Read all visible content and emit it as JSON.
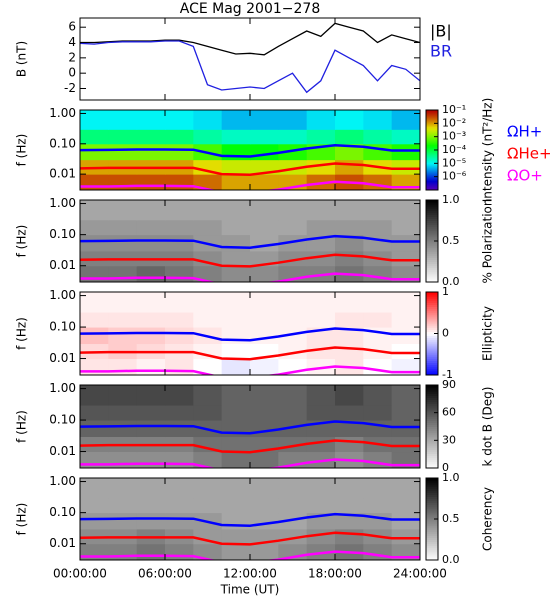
{
  "chart_data": [
    {
      "type": "line",
      "title": "ACE Mag 2001−278",
      "ylabel": "B (nT)",
      "x": [
        0,
        1,
        2,
        3,
        4,
        5,
        6,
        7,
        8,
        9,
        10,
        11,
        12,
        13,
        14,
        15,
        16,
        17,
        18,
        19,
        20,
        21,
        22,
        23,
        24
      ],
      "xlim": [
        0,
        24
      ],
      "xticks": [
        0,
        6,
        12,
        18,
        24
      ],
      "ylim": [
        -3.5,
        7.2
      ],
      "yticks": [
        -2,
        0,
        2,
        4,
        6
      ],
      "legend": "right",
      "series": [
        {
          "name": "|B|",
          "color": "#000000",
          "values": [
            4.0,
            4.0,
            4.1,
            4.2,
            4.2,
            4.2,
            4.3,
            4.3,
            4.0,
            3.5,
            3.0,
            2.5,
            2.6,
            2.4,
            3.5,
            4.5,
            5.5,
            4.8,
            6.5,
            6.0,
            5.5,
            4.0,
            5.0,
            4.5,
            4.0
          ]
        },
        {
          "name": "BR",
          "color": "#2020e0",
          "values": [
            3.9,
            3.8,
            4.0,
            4.1,
            4.1,
            4.1,
            4.2,
            4.2,
            3.5,
            -1.5,
            -2.2,
            -2.0,
            -1.8,
            -2.0,
            -1.0,
            0,
            -2.5,
            -1.0,
            3.0,
            2.0,
            1.0,
            -1.0,
            1.0,
            0.5,
            -1.0
          ]
        }
      ]
    },
    {
      "type": "heatmap",
      "ylabel": "f (Hz)",
      "log_y": true,
      "xlim": [
        0,
        24
      ],
      "xticks": [
        0,
        6,
        12,
        18,
        24
      ],
      "ylim": [
        0.003,
        1.3
      ],
      "yticks": [
        0.01,
        {
          "value": 0.1,
          "label": "0.10"
        },
        {
          "value": 1,
          "label": "1.00"
        }
      ],
      "xbins": [
        0,
        2,
        4,
        6,
        8,
        10,
        12,
        14,
        16,
        18,
        20,
        22,
        24
      ],
      "ybins": [
        0.003,
        0.01,
        0.03,
        0.1,
        0.3,
        1.3
      ],
      "colormap": "rainbow",
      "zlog": true,
      "zlim": [
        1e-07,
        0.1
      ],
      "zticks": [
        {
          "value": 0.1,
          "label": "10⁻¹"
        },
        {
          "value": 0.01,
          "label": "10⁻²"
        },
        {
          "value": 0.001,
          "label": "10⁻³"
        },
        {
          "value": 0.0001,
          "label": "10⁻⁴"
        },
        {
          "value": 1e-05,
          "label": "10⁻⁵"
        },
        {
          "value": 1e-06,
          "label": "10⁻⁶"
        }
      ],
      "zlabel": "Intensity (nT²/Hz)",
      "z": [
        [
          0.03,
          0.03,
          0.03,
          0.03,
          0.02,
          0.01,
          0.01,
          0.01,
          0.02,
          0.03,
          0.02,
          0.01
        ],
        [
          0.01,
          0.01,
          0.01,
          0.01,
          0.005,
          0.003,
          0.003,
          0.003,
          0.005,
          0.01,
          0.005,
          0.003
        ],
        [
          0.001,
          0.001,
          0.001,
          0.001,
          0.0005,
          0.0002,
          0.0002,
          0.0003,
          0.0005,
          0.001,
          0.0005,
          0.0003
        ],
        [
          5e-05,
          5e-05,
          5e-05,
          5e-05,
          3e-05,
          2e-05,
          2e-05,
          2e-05,
          3e-05,
          5e-05,
          3e-05,
          2e-05
        ],
        [
          1e-05,
          1e-05,
          1e-05,
          1e-05,
          8e-06,
          5e-06,
          5e-06,
          5e-06,
          8e-06,
          1e-05,
          8e-06,
          5e-06
        ]
      ],
      "overlay_x": [
        0,
        2,
        4,
        6,
        8,
        10,
        12,
        14,
        16,
        18,
        20,
        22,
        24
      ],
      "legend": "right",
      "series": [
        {
          "name": "ΩH+",
          "color": "#0000ff",
          "values": [
            0.062,
            0.063,
            0.065,
            0.065,
            0.064,
            0.04,
            0.038,
            0.05,
            0.07,
            0.09,
            0.08,
            0.06,
            0.06
          ]
        },
        {
          "name": "ΩHe+",
          "color": "#ff0000",
          "values": [
            0.0155,
            0.016,
            0.016,
            0.016,
            0.016,
            0.01,
            0.0095,
            0.0125,
            0.0175,
            0.0225,
            0.02,
            0.015,
            0.015
          ]
        },
        {
          "name": "ΩO+",
          "color": "#ff00ff",
          "values": [
            0.0039,
            0.0039,
            0.0041,
            0.0041,
            0.004,
            0.0025,
            0.0024,
            0.0031,
            0.0044,
            0.0056,
            0.005,
            0.0037,
            0.0037
          ]
        }
      ]
    },
    {
      "type": "heatmap",
      "ylabel": "f (Hz)",
      "log_y": true,
      "xlim": [
        0,
        24
      ],
      "xticks": [
        0,
        6,
        12,
        18,
        24
      ],
      "ylim": [
        0.003,
        1.3
      ],
      "yticks": [
        0.01,
        {
          "value": 0.1,
          "label": "0.10"
        },
        {
          "value": 1,
          "label": "1.00"
        }
      ],
      "xbins": [
        0,
        2,
        4,
        6,
        8,
        10,
        12,
        14,
        16,
        18,
        20,
        22,
        24
      ],
      "ybins": [
        0.003,
        0.01,
        0.03,
        0.1,
        0.3,
        1.3
      ],
      "colormap": "gray",
      "zlim": [
        0,
        1
      ],
      "zticks": [
        {
          "value": 0,
          "label": "0.0"
        },
        {
          "value": 0.5,
          "label": "0.5"
        },
        {
          "value": 1,
          "label": "1.0"
        }
      ],
      "zlabel": "% Polarization",
      "z": [
        [
          0.55,
          0.55,
          0.6,
          0.55,
          0.5,
          0.45,
          0.45,
          0.5,
          0.5,
          0.55,
          0.5,
          0.45
        ],
        [
          0.5,
          0.5,
          0.5,
          0.5,
          0.45,
          0.4,
          0.4,
          0.45,
          0.45,
          0.5,
          0.45,
          0.4
        ],
        [
          0.45,
          0.45,
          0.45,
          0.45,
          0.4,
          0.4,
          0.35,
          0.4,
          0.4,
          0.45,
          0.4,
          0.4
        ],
        [
          0.4,
          0.4,
          0.4,
          0.4,
          0.4,
          0.35,
          0.35,
          0.35,
          0.4,
          0.4,
          0.4,
          0.35
        ],
        [
          0.35,
          0.35,
          0.35,
          0.35,
          0.35,
          0.35,
          0.35,
          0.35,
          0.35,
          0.35,
          0.35,
          0.35
        ]
      ],
      "overlay_x": [
        0,
        2,
        4,
        6,
        8,
        10,
        12,
        14,
        16,
        18,
        20,
        22,
        24
      ],
      "series": [
        {
          "color": "#0000ff",
          "values": [
            0.062,
            0.063,
            0.065,
            0.065,
            0.064,
            0.04,
            0.038,
            0.05,
            0.07,
            0.09,
            0.08,
            0.06,
            0.06
          ]
        },
        {
          "color": "#ff0000",
          "values": [
            0.0155,
            0.016,
            0.016,
            0.016,
            0.016,
            0.01,
            0.0095,
            0.0125,
            0.0175,
            0.0225,
            0.02,
            0.015,
            0.015
          ]
        },
        {
          "color": "#ff00ff",
          "values": [
            0.0039,
            0.0039,
            0.0041,
            0.0041,
            0.004,
            0.0025,
            0.0024,
            0.0031,
            0.0044,
            0.0056,
            0.005,
            0.0037,
            0.0037
          ]
        }
      ]
    },
    {
      "type": "heatmap",
      "ylabel": "f (Hz)",
      "log_y": true,
      "xlim": [
        0,
        24
      ],
      "xticks": [
        0,
        6,
        12,
        18,
        24
      ],
      "ylim": [
        0.003,
        1.3
      ],
      "yticks": [
        0.01,
        {
          "value": 0.1,
          "label": "0.10"
        },
        {
          "value": 1,
          "label": "1.00"
        }
      ],
      "xbins": [
        0,
        2,
        4,
        6,
        8,
        10,
        12,
        14,
        16,
        18,
        20,
        22,
        24
      ],
      "ybins": [
        0.003,
        0.01,
        0.03,
        0.1,
        0.3,
        1.3
      ],
      "colormap": "bwr",
      "zlim": [
        -1,
        1
      ],
      "zticks": [
        -1,
        0,
        1
      ],
      "zlabel": "Ellipticity",
      "z": [
        [
          0.1,
          0.1,
          0.05,
          0.1,
          0,
          -0.1,
          -0.05,
          0,
          0.05,
          0.1,
          0,
          -0.05
        ],
        [
          0.15,
          0.2,
          0.15,
          0.1,
          0.05,
          0,
          0,
          0.05,
          0.1,
          0.1,
          0.05,
          0
        ],
        [
          0.25,
          0.2,
          0.2,
          0.15,
          0.1,
          0.05,
          0.05,
          0.05,
          0.1,
          0.1,
          0.05,
          0.05
        ],
        [
          0.1,
          0.1,
          0.1,
          0.1,
          0.05,
          0.05,
          0.05,
          0.05,
          0.05,
          0.1,
          0.1,
          0.05
        ],
        [
          0.05,
          0.05,
          0.05,
          0.05,
          0.05,
          0.05,
          0.05,
          0.05,
          0.05,
          0.05,
          0.05,
          0.05
        ]
      ],
      "overlay_x": [
        0,
        2,
        4,
        6,
        8,
        10,
        12,
        14,
        16,
        18,
        20,
        22,
        24
      ],
      "series": [
        {
          "color": "#0000ff",
          "values": [
            0.062,
            0.063,
            0.065,
            0.065,
            0.064,
            0.04,
            0.038,
            0.05,
            0.07,
            0.09,
            0.08,
            0.06,
            0.06
          ]
        },
        {
          "color": "#ff0000",
          "values": [
            0.0155,
            0.016,
            0.016,
            0.016,
            0.016,
            0.01,
            0.0095,
            0.0125,
            0.0175,
            0.0225,
            0.02,
            0.015,
            0.015
          ]
        },
        {
          "color": "#ff00ff",
          "values": [
            0.0039,
            0.0039,
            0.0041,
            0.0041,
            0.004,
            0.0025,
            0.0024,
            0.0031,
            0.0044,
            0.0056,
            0.005,
            0.0037,
            0.0037
          ]
        }
      ]
    },
    {
      "type": "heatmap",
      "ylabel": "f (Hz)",
      "log_y": true,
      "xlim": [
        0,
        24
      ],
      "xticks": [
        0,
        6,
        12,
        18,
        24
      ],
      "ylim": [
        0.003,
        1.3
      ],
      "yticks": [
        0.01,
        {
          "value": 0.1,
          "label": "0.10"
        },
        {
          "value": 1,
          "label": "1.00"
        }
      ],
      "xbins": [
        0,
        2,
        4,
        6,
        8,
        10,
        12,
        14,
        16,
        18,
        20,
        22,
        24
      ],
      "ybins": [
        0.003,
        0.01,
        0.03,
        0.1,
        0.3,
        1.3
      ],
      "colormap": "gray",
      "zlim": [
        0,
        90
      ],
      "zticks": [
        0,
        30,
        60,
        90
      ],
      "zlabel": "k dot B (Deg)",
      "z": [
        [
          40,
          40,
          40,
          40,
          45,
          50,
          50,
          45,
          45,
          40,
          45,
          50
        ],
        [
          45,
          45,
          45,
          45,
          50,
          50,
          50,
          50,
          50,
          45,
          50,
          50
        ],
        [
          55,
          55,
          55,
          55,
          55,
          55,
          55,
          55,
          55,
          55,
          55,
          55
        ],
        [
          60,
          60,
          60,
          60,
          60,
          55,
          55,
          55,
          60,
          60,
          60,
          55
        ],
        [
          65,
          65,
          65,
          65,
          60,
          55,
          55,
          55,
          60,
          65,
          60,
          55
        ]
      ],
      "overlay_x": [
        0,
        2,
        4,
        6,
        8,
        10,
        12,
        14,
        16,
        18,
        20,
        22,
        24
      ],
      "series": [
        {
          "color": "#0000ff",
          "values": [
            0.062,
            0.063,
            0.065,
            0.065,
            0.064,
            0.04,
            0.038,
            0.05,
            0.07,
            0.09,
            0.08,
            0.06,
            0.06
          ]
        },
        {
          "color": "#ff0000",
          "values": [
            0.0155,
            0.016,
            0.016,
            0.016,
            0.016,
            0.01,
            0.0095,
            0.0125,
            0.0175,
            0.0225,
            0.02,
            0.015,
            0.015
          ]
        },
        {
          "color": "#ff00ff",
          "values": [
            0.0039,
            0.0039,
            0.0041,
            0.0041,
            0.004,
            0.0025,
            0.0024,
            0.0031,
            0.0044,
            0.0056,
            0.005,
            0.0037,
            0.0037
          ]
        }
      ]
    },
    {
      "type": "heatmap",
      "ylabel": "f (Hz)",
      "log_y": true,
      "xlabel": "Time (UT)",
      "xlim": [
        0,
        24
      ],
      "xticks": [
        {
          "value": 0,
          "label": "00:00:00"
        },
        {
          "value": 6,
          "label": "06:00:00"
        },
        {
          "value": 12,
          "label": "12:00:00"
        },
        {
          "value": 18,
          "label": "18:00:00"
        },
        {
          "value": 24,
          "label": "24:00:00"
        }
      ],
      "ylim": [
        0.003,
        1.3
      ],
      "yticks": [
        0.01,
        {
          "value": 0.1,
          "label": "0.10"
        },
        {
          "value": 1,
          "label": "1.00"
        }
      ],
      "xbins": [
        0,
        2,
        4,
        6,
        8,
        10,
        12,
        14,
        16,
        18,
        20,
        22,
        24
      ],
      "ybins": [
        0.003,
        0.01,
        0.03,
        0.1,
        0.3,
        1.3
      ],
      "colormap": "gray",
      "zlim": [
        0,
        1
      ],
      "zticks": [
        {
          "value": 0,
          "label": "0.0"
        },
        {
          "value": 0.5,
          "label": "0.5"
        },
        {
          "value": 1,
          "label": "1.0"
        }
      ],
      "zlabel": "Coherency",
      "z": [
        [
          0.5,
          0.5,
          0.55,
          0.5,
          0.45,
          0.4,
          0.4,
          0.45,
          0.5,
          0.55,
          0.5,
          0.45
        ],
        [
          0.45,
          0.45,
          0.5,
          0.45,
          0.4,
          0.4,
          0.4,
          0.4,
          0.45,
          0.5,
          0.45,
          0.4
        ],
        [
          0.4,
          0.4,
          0.4,
          0.4,
          0.4,
          0.35,
          0.35,
          0.35,
          0.4,
          0.4,
          0.4,
          0.35
        ],
        [
          0.35,
          0.35,
          0.35,
          0.35,
          0.35,
          0.35,
          0.35,
          0.35,
          0.35,
          0.35,
          0.35,
          0.35
        ],
        [
          0.35,
          0.35,
          0.35,
          0.35,
          0.35,
          0.35,
          0.35,
          0.35,
          0.35,
          0.35,
          0.35,
          0.35
        ]
      ],
      "overlay_x": [
        0,
        2,
        4,
        6,
        8,
        10,
        12,
        14,
        16,
        18,
        20,
        22,
        24
      ],
      "series": [
        {
          "color": "#0000ff",
          "values": [
            0.062,
            0.063,
            0.065,
            0.065,
            0.064,
            0.04,
            0.038,
            0.05,
            0.07,
            0.09,
            0.08,
            0.06,
            0.06
          ]
        },
        {
          "color": "#ff0000",
          "values": [
            0.0155,
            0.016,
            0.016,
            0.016,
            0.016,
            0.01,
            0.0095,
            0.0125,
            0.0175,
            0.0225,
            0.02,
            0.015,
            0.015
          ]
        },
        {
          "color": "#ff00ff",
          "values": [
            0.0039,
            0.0039,
            0.0041,
            0.0041,
            0.004,
            0.0025,
            0.0024,
            0.0031,
            0.0044,
            0.0056,
            0.005,
            0.0037,
            0.0037
          ]
        }
      ]
    }
  ]
}
